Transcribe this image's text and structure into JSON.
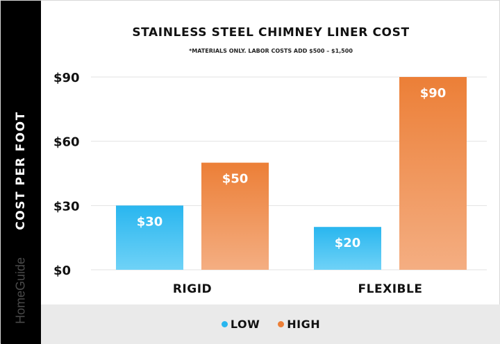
{
  "colors": {
    "low": "#29b6ef",
    "low_light": "#6fd2f7",
    "high": "#ec7f37",
    "high_light": "#f4ae82",
    "gridline": "#e2e2e2",
    "sidebar": "#000000",
    "legend_background": "#eaeaea"
  },
  "brand": "HomeGuide",
  "chart_data": {
    "type": "bar",
    "title": "STAINLESS STEEL CHIMNEY LINER COST",
    "subtitle": "*MATERIALS ONLY. LABOR COSTS ADD $500 – $1,500",
    "xlabel": "",
    "ylabel": "COST PER FOOT",
    "categories": [
      "RIGID",
      "FLEXIBLE"
    ],
    "series": [
      {
        "name": "LOW",
        "values": [
          30,
          20
        ],
        "labels": [
          "$30",
          "$20"
        ]
      },
      {
        "name": "HIGH",
        "values": [
          50,
          90
        ],
        "labels": [
          "$50",
          "$90"
        ]
      }
    ],
    "ylim": [
      0,
      90
    ],
    "yticks": [
      0,
      30,
      60,
      90
    ],
    "ytick_labels": [
      "$0",
      "$30",
      "$60",
      "$90"
    ],
    "grid": true,
    "legend_position": "bottom"
  }
}
